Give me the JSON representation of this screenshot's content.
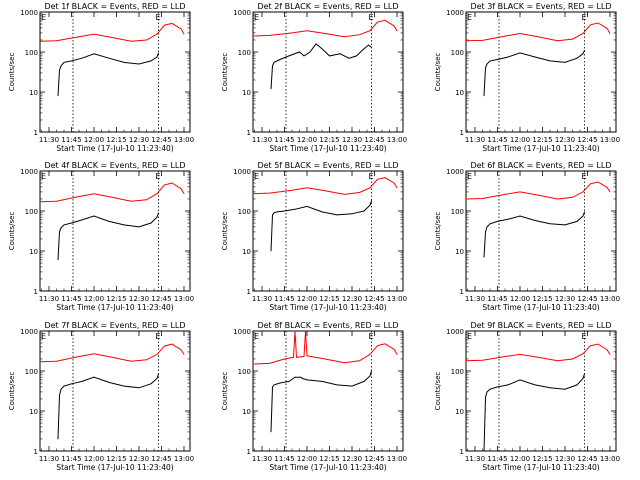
{
  "chart_data": [
    {
      "type": "line",
      "title": "Det 1f BLACK = Events, RED = LLD",
      "xlabel": "Start Time (17-Jul-10 11:23:40)",
      "ylabel": "Counts/sec",
      "yscale": "log",
      "ylim": [
        1,
        1000
      ],
      "xticks": [
        "11:30",
        "11:45",
        "12:00",
        "12:15",
        "12:30",
        "12:45",
        "13:00"
      ],
      "markers": [
        {
          "time": "11:46",
          "label": "E"
        },
        {
          "time": "12:43",
          "label": "E"
        }
      ],
      "series": [
        {
          "color": "#ff0000",
          "x": [
            "11:24",
            "11:35",
            "11:50",
            "12:00",
            "12:12",
            "12:25",
            "12:35",
            "12:42",
            "12:47",
            "12:52",
            "12:58",
            "13:00"
          ],
          "y": [
            185,
            190,
            240,
            280,
            230,
            185,
            200,
            280,
            470,
            520,
            380,
            280
          ]
        },
        {
          "color": "#000000",
          "x": [
            "11:36",
            "11:37",
            "11:38",
            "11:40",
            "11:45",
            "11:52",
            "12:00",
            "12:10",
            "12:20",
            "12:30",
            "12:38",
            "12:42",
            "12:43"
          ],
          "y": [
            8,
            35,
            45,
            55,
            60,
            70,
            90,
            70,
            55,
            50,
            60,
            75,
            95
          ]
        }
      ]
    },
    {
      "type": "line",
      "title": "Det 2f BLACK = Events, RED = LLD",
      "xlabel": "Start Time (17-Jul-10 11:23:40)",
      "ylabel": "Counts/sec",
      "yscale": "log",
      "ylim": [
        1,
        1000
      ],
      "xticks": [
        "11:30",
        "11:45",
        "12:00",
        "12:15",
        "12:30",
        "12:45",
        "13:00"
      ],
      "markers": [
        {
          "time": "11:46",
          "label": "E"
        },
        {
          "time": "12:43",
          "label": "E"
        }
      ],
      "series": [
        {
          "color": "#ff0000",
          "x": [
            "11:24",
            "11:35",
            "11:50",
            "12:00",
            "12:12",
            "12:25",
            "12:35",
            "12:42",
            "12:47",
            "12:52",
            "12:58",
            "13:00"
          ],
          "y": [
            250,
            260,
            300,
            340,
            290,
            240,
            270,
            340,
            560,
            620,
            450,
            340
          ]
        },
        {
          "color": "#000000",
          "x": [
            "11:36",
            "11:37",
            "11:38",
            "11:42",
            "11:48",
            "11:55",
            "11:58",
            "12:02",
            "12:06",
            "12:10",
            "12:15",
            "12:22",
            "12:28",
            "12:33",
            "12:38",
            "12:41",
            "12:43"
          ],
          "y": [
            12,
            45,
            55,
            65,
            80,
            100,
            80,
            100,
            160,
            120,
            80,
            90,
            70,
            80,
            120,
            150,
            130
          ]
        }
      ]
    },
    {
      "type": "line",
      "title": "Det 3f BLACK = Events, RED = LLD",
      "xlabel": "Start Time (17-Jul-10 11:23:40)",
      "ylabel": "Counts/sec",
      "yscale": "log",
      "ylim": [
        1,
        1000
      ],
      "xticks": [
        "11:30",
        "11:45",
        "12:00",
        "12:15",
        "12:30",
        "12:45",
        "13:00"
      ],
      "markers": [
        {
          "time": "11:46",
          "label": "E"
        },
        {
          "time": "12:43",
          "label": "E"
        }
      ],
      "series": [
        {
          "color": "#ff0000",
          "x": [
            "11:24",
            "11:35",
            "11:50",
            "12:00",
            "12:12",
            "12:25",
            "12:35",
            "12:42",
            "12:47",
            "12:52",
            "12:58",
            "13:00"
          ],
          "y": [
            190,
            195,
            250,
            290,
            240,
            190,
            210,
            290,
            480,
            530,
            390,
            290
          ]
        },
        {
          "color": "#000000",
          "x": [
            "11:36",
            "11:37",
            "11:38",
            "11:40",
            "11:45",
            "11:52",
            "12:00",
            "12:10",
            "12:20",
            "12:30",
            "12:38",
            "12:42",
            "12:43"
          ],
          "y": [
            8,
            40,
            50,
            60,
            65,
            75,
            95,
            75,
            60,
            55,
            70,
            90,
            110
          ]
        }
      ]
    },
    {
      "type": "line",
      "title": "Det 4f BLACK = Events, RED = LLD",
      "xlabel": "Start Time (17-Jul-10 11:23:40)",
      "ylabel": "Counts/sec",
      "yscale": "log",
      "ylim": [
        1,
        1000
      ],
      "xticks": [
        "11:30",
        "11:45",
        "12:00",
        "12:15",
        "12:30",
        "12:45",
        "13:00"
      ],
      "markers": [
        {
          "time": "11:46",
          "label": "E"
        },
        {
          "time": "12:43",
          "label": "E"
        }
      ],
      "series": [
        {
          "color": "#ff0000",
          "x": [
            "11:24",
            "11:35",
            "11:50",
            "12:00",
            "12:12",
            "12:25",
            "12:35",
            "12:42",
            "12:47",
            "12:52",
            "12:58",
            "13:00"
          ],
          "y": [
            170,
            175,
            230,
            270,
            220,
            175,
            190,
            270,
            450,
            500,
            360,
            270
          ]
        },
        {
          "color": "#000000",
          "x": [
            "11:36",
            "11:37",
            "11:38",
            "11:40",
            "11:45",
            "11:52",
            "12:00",
            "12:10",
            "12:20",
            "12:30",
            "12:38",
            "12:42",
            "12:43"
          ],
          "y": [
            6,
            30,
            38,
            45,
            50,
            60,
            75,
            55,
            45,
            40,
            50,
            70,
            90
          ]
        }
      ]
    },
    {
      "type": "line",
      "title": "Det 5f BLACK = Events, RED = LLD",
      "xlabel": "Start Time (17-Jul-10 11:23:40)",
      "ylabel": "Counts/sec",
      "yscale": "log",
      "ylim": [
        1,
        1000
      ],
      "xticks": [
        "11:30",
        "11:45",
        "12:00",
        "12:15",
        "12:30",
        "12:45",
        "13:00"
      ],
      "markers": [
        {
          "time": "11:46",
          "label": "E"
        },
        {
          "time": "12:43",
          "label": "E"
        }
      ],
      "series": [
        {
          "color": "#ff0000",
          "x": [
            "11:24",
            "11:35",
            "11:50",
            "12:00",
            "12:12",
            "12:25",
            "12:35",
            "12:42",
            "12:47",
            "12:52",
            "12:58",
            "13:00"
          ],
          "y": [
            270,
            280,
            330,
            380,
            320,
            260,
            290,
            380,
            620,
            680,
            500,
            380
          ]
        },
        {
          "color": "#000000",
          "x": [
            "11:36",
            "11:37",
            "11:38",
            "11:40",
            "11:45",
            "11:52",
            "12:00",
            "12:10",
            "12:20",
            "12:30",
            "12:38",
            "12:42",
            "12:43"
          ],
          "y": [
            10,
            80,
            90,
            95,
            100,
            110,
            130,
            95,
            80,
            85,
            100,
            140,
            180
          ]
        }
      ]
    },
    {
      "type": "line",
      "title": "Det 6f BLACK = Events, RED = LLD",
      "xlabel": "Start Time (17-Jul-10 11:23:40)",
      "ylabel": "Counts/sec",
      "yscale": "log",
      "ylim": [
        1,
        1000
      ],
      "xticks": [
        "11:30",
        "11:45",
        "12:00",
        "12:15",
        "12:30",
        "12:45",
        "13:00"
      ],
      "markers": [
        {
          "time": "11:46",
          "label": "E"
        },
        {
          "time": "12:43",
          "label": "E"
        }
      ],
      "series": [
        {
          "color": "#ff0000",
          "x": [
            "11:24",
            "11:35",
            "11:50",
            "12:00",
            "12:12",
            "12:25",
            "12:35",
            "12:42",
            "12:47",
            "12:52",
            "12:58",
            "13:00"
          ],
          "y": [
            200,
            205,
            260,
            300,
            250,
            200,
            220,
            300,
            480,
            530,
            390,
            300
          ]
        },
        {
          "color": "#000000",
          "x": [
            "11:36",
            "11:37",
            "11:38",
            "11:40",
            "11:45",
            "11:52",
            "12:00",
            "12:10",
            "12:20",
            "12:30",
            "12:38",
            "12:42",
            "12:43"
          ],
          "y": [
            7,
            30,
            40,
            48,
            55,
            62,
            75,
            58,
            48,
            45,
            55,
            75,
            95
          ]
        }
      ]
    },
    {
      "type": "line",
      "title": "Det 7f BLACK = Events, RED = LLD",
      "xlabel": "Start Time (17-Jul-10 11:23:40)",
      "ylabel": "Counts/sec",
      "yscale": "log",
      "ylim": [
        1,
        1000
      ],
      "xticks": [
        "11:30",
        "11:45",
        "12:00",
        "12:15",
        "12:30",
        "12:45",
        "13:00"
      ],
      "markers": [
        {
          "time": "11:46",
          "label": "E"
        },
        {
          "time": "12:43",
          "label": "E"
        }
      ],
      "series": [
        {
          "color": "#ff0000",
          "x": [
            "11:24",
            "11:35",
            "11:50",
            "12:00",
            "12:12",
            "12:25",
            "12:35",
            "12:42",
            "12:47",
            "12:52",
            "12:58",
            "13:00"
          ],
          "y": [
            170,
            175,
            230,
            270,
            220,
            175,
            190,
            260,
            420,
            470,
            340,
            260
          ]
        },
        {
          "color": "#000000",
          "x": [
            "11:36",
            "11:37",
            "11:38",
            "11:40",
            "11:45",
            "11:52",
            "12:00",
            "12:10",
            "12:20",
            "12:30",
            "12:38",
            "12:42",
            "12:43"
          ],
          "y": [
            2,
            25,
            35,
            42,
            48,
            55,
            70,
            52,
            42,
            38,
            48,
            65,
            85
          ]
        }
      ]
    },
    {
      "type": "line",
      "title": "Det 8f BLACK = Events, RED = LLD",
      "xlabel": "Start Time (17-Jul-10 11:23:40)",
      "ylabel": "Counts/sec",
      "yscale": "log",
      "ylim": [
        1,
        1000
      ],
      "xticks": [
        "11:30",
        "11:45",
        "12:00",
        "12:15",
        "12:30",
        "12:45",
        "13:00"
      ],
      "markers": [
        {
          "time": "11:46",
          "label": "E"
        },
        {
          "time": "12:43",
          "label": "E"
        }
      ],
      "series": [
        {
          "color": "#ff0000",
          "x": [
            "11:24",
            "11:35",
            "11:45",
            "11:51",
            "11:52",
            "11:53",
            "11:58",
            "11:59",
            "12:00",
            "12:12",
            "12:25",
            "12:35",
            "12:42",
            "12:47",
            "12:52",
            "12:58",
            "13:00"
          ],
          "y": [
            150,
            155,
            200,
            220,
            1000,
            220,
            230,
            1000,
            240,
            200,
            160,
            180,
            260,
            430,
            480,
            350,
            260
          ]
        },
        {
          "color": "#000000",
          "x": [
            "11:36",
            "11:37",
            "11:38",
            "11:42",
            "11:48",
            "11:52",
            "11:56",
            "11:57",
            "12:00",
            "12:10",
            "12:20",
            "12:30",
            "12:38",
            "12:42",
            "12:43"
          ],
          "y": [
            3,
            40,
            45,
            50,
            55,
            70,
            70,
            65,
            60,
            55,
            45,
            42,
            55,
            75,
            100
          ]
        }
      ]
    },
    {
      "type": "line",
      "title": "Det 9f BLACK = Events, RED = LLD",
      "xlabel": "Start Time (17-Jul-10 11:23:40)",
      "ylabel": "Counts/sec",
      "yscale": "log",
      "ylim": [
        1,
        1000
      ],
      "xticks": [
        "11:30",
        "11:45",
        "12:00",
        "12:15",
        "12:30",
        "12:45",
        "13:00"
      ],
      "markers": [
        {
          "time": "11:46",
          "label": "E"
        },
        {
          "time": "12:43",
          "label": "E"
        }
      ],
      "series": [
        {
          "color": "#ff0000",
          "x": [
            "11:24",
            "11:35",
            "11:50",
            "12:00",
            "12:12",
            "12:25",
            "12:35",
            "12:42",
            "12:47",
            "12:52",
            "12:58",
            "13:00"
          ],
          "y": [
            180,
            185,
            230,
            260,
            220,
            180,
            200,
            270,
            430,
            470,
            340,
            260
          ]
        },
        {
          "color": "#000000",
          "x": [
            "11:36",
            "11:37",
            "11:38",
            "11:40",
            "11:45",
            "11:52",
            "12:00",
            "12:10",
            "12:20",
            "12:30",
            "12:38",
            "12:42",
            "12:43"
          ],
          "y": [
            1,
            22,
            30,
            35,
            40,
            45,
            60,
            45,
            38,
            35,
            45,
            65,
            85
          ]
        }
      ]
    }
  ]
}
